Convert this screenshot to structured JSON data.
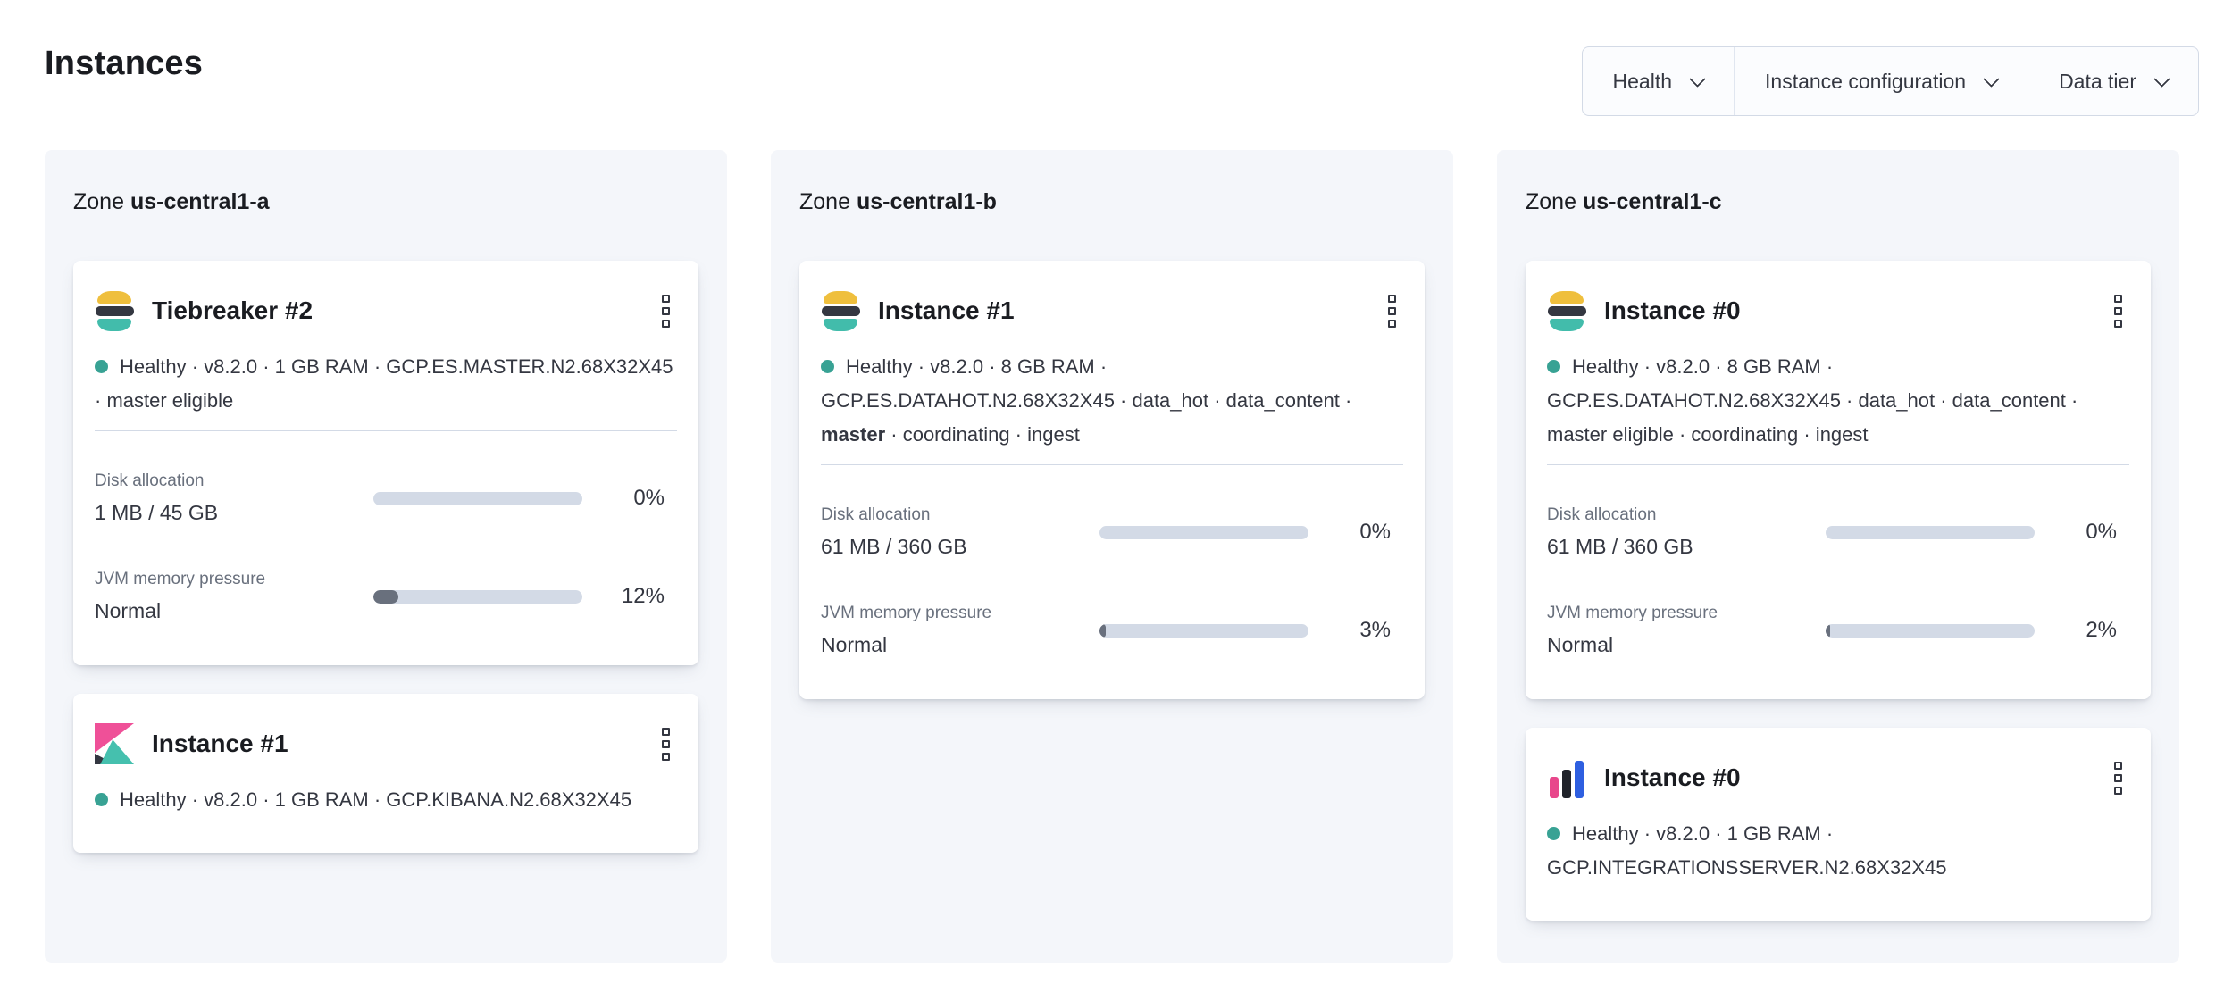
{
  "page": {
    "title": "Instances"
  },
  "filters": {
    "health": {
      "label": "Health"
    },
    "instance_configuration": {
      "label": "Instance configuration"
    },
    "data_tier": {
      "label": "Data tier"
    }
  },
  "colors": {
    "healthy_dot": "#38a294",
    "meter_track": "#d3dae6",
    "meter_fill": "#69707d",
    "zone_panel_bg": "#f4f6fa",
    "elasticsearch_logo": [
      "#efbf3d",
      "#343741",
      "#42bcab"
    ],
    "kibana_logo": [
      "#ef5098",
      "#343741",
      "#45c0ae"
    ],
    "integrations_server_logo": [
      "#e8478b",
      "#20232a",
      "#2e5fe0"
    ]
  },
  "zones": [
    {
      "prefix": "Zone",
      "name": "us-central1-a",
      "cards": [
        {
          "logo": "elasticsearch",
          "title": "Tiebreaker #2",
          "health": "Healthy",
          "status": {
            "before": "Healthy · v8.2.0 · 1 GB RAM · GCP.ES.MASTER.N2.68X32X45 · master eligible",
            "bold": "",
            "after": ""
          },
          "disk": {
            "label": "Disk allocation",
            "value": "1 MB / 45 GB",
            "percent": "0%",
            "fill": 0
          },
          "jvm": {
            "label": "JVM memory pressure",
            "value": "Normal",
            "percent": "12%",
            "fill": 12
          }
        },
        {
          "logo": "kibana",
          "title": "Instance #1",
          "health": "Healthy",
          "status": {
            "before": "Healthy · v8.2.0 · 1 GB RAM · GCP.KIBANA.N2.68X32X45",
            "bold": "",
            "after": ""
          }
        }
      ]
    },
    {
      "prefix": "Zone",
      "name": "us-central1-b",
      "cards": [
        {
          "logo": "elasticsearch",
          "title": "Instance #1",
          "health": "Healthy",
          "status": {
            "before": "Healthy · v8.2.0 · 8 GB RAM · GCP.ES.DATAHOT.N2.68X32X45 · data_hot · data_content · ",
            "bold": "master",
            "after": " · coordinating · ingest"
          },
          "disk": {
            "label": "Disk allocation",
            "value": "61 MB / 360 GB",
            "percent": "0%",
            "fill": 0
          },
          "jvm": {
            "label": "JVM memory pressure",
            "value": "Normal",
            "percent": "3%",
            "fill": 3
          }
        }
      ]
    },
    {
      "prefix": "Zone",
      "name": "us-central1-c",
      "cards": [
        {
          "logo": "elasticsearch",
          "title": "Instance #0",
          "health": "Healthy",
          "status": {
            "before": "Healthy · v8.2.0 · 8 GB RAM · GCP.ES.DATAHOT.N2.68X32X45 · data_hot · data_content · master eligible · coordinating · ingest",
            "bold": "",
            "after": ""
          },
          "disk": {
            "label": "Disk allocation",
            "value": "61 MB / 360 GB",
            "percent": "0%",
            "fill": 0
          },
          "jvm": {
            "label": "JVM memory pressure",
            "value": "Normal",
            "percent": "2%",
            "fill": 2
          }
        },
        {
          "logo": "integrations-server",
          "title": "Instance #0",
          "health": "Healthy",
          "status": {
            "before": "Healthy · v8.2.0 · 1 GB RAM · GCP.INTEGRATIONSSERVER.N2.68X32X45",
            "bold": "",
            "after": ""
          }
        }
      ]
    }
  ]
}
